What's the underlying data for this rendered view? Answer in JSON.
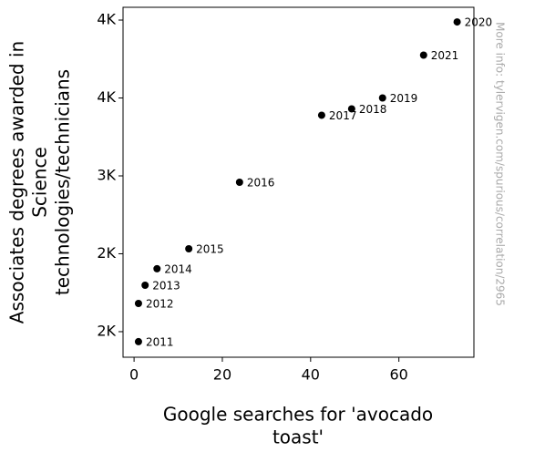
{
  "chart_data": {
    "type": "scatter",
    "xlabel": [
      "Google searches for 'avocado",
      "toast'"
    ],
    "ylabel": [
      "Associates degrees awarded in",
      "Science",
      "technologies/technicians"
    ],
    "side_note": "More info: tylervigen.com/spurious/correlation/2965",
    "labels": [
      "2011",
      "2012",
      "2013",
      "2014",
      "2015",
      "2016",
      "2017",
      "2018",
      "2019",
      "2020",
      "2021"
    ],
    "x": [
      1.0,
      1.0,
      2.5,
      5.2,
      12.4,
      23.9,
      42.5,
      49.3,
      56.3,
      73.2,
      65.6
    ],
    "values": [
      1936,
      2181,
      2298,
      2404,
      2532,
      2959,
      3389,
      3430,
      3500,
      3988,
      3775
    ],
    "color": "#000000",
    "xlim": [
      -2.5,
      77
    ],
    "xticks": [
      0,
      20,
      40,
      60
    ],
    "ylim": [
      1836,
      4082
    ],
    "yticks": [
      {
        "value": 2000,
        "label": "2K"
      },
      {
        "value": 2500,
        "label": "2K"
      },
      {
        "value": 3000,
        "label": "3K"
      },
      {
        "value": 3500,
        "label": "4K"
      },
      {
        "value": 4000,
        "label": "4K"
      }
    ]
  }
}
